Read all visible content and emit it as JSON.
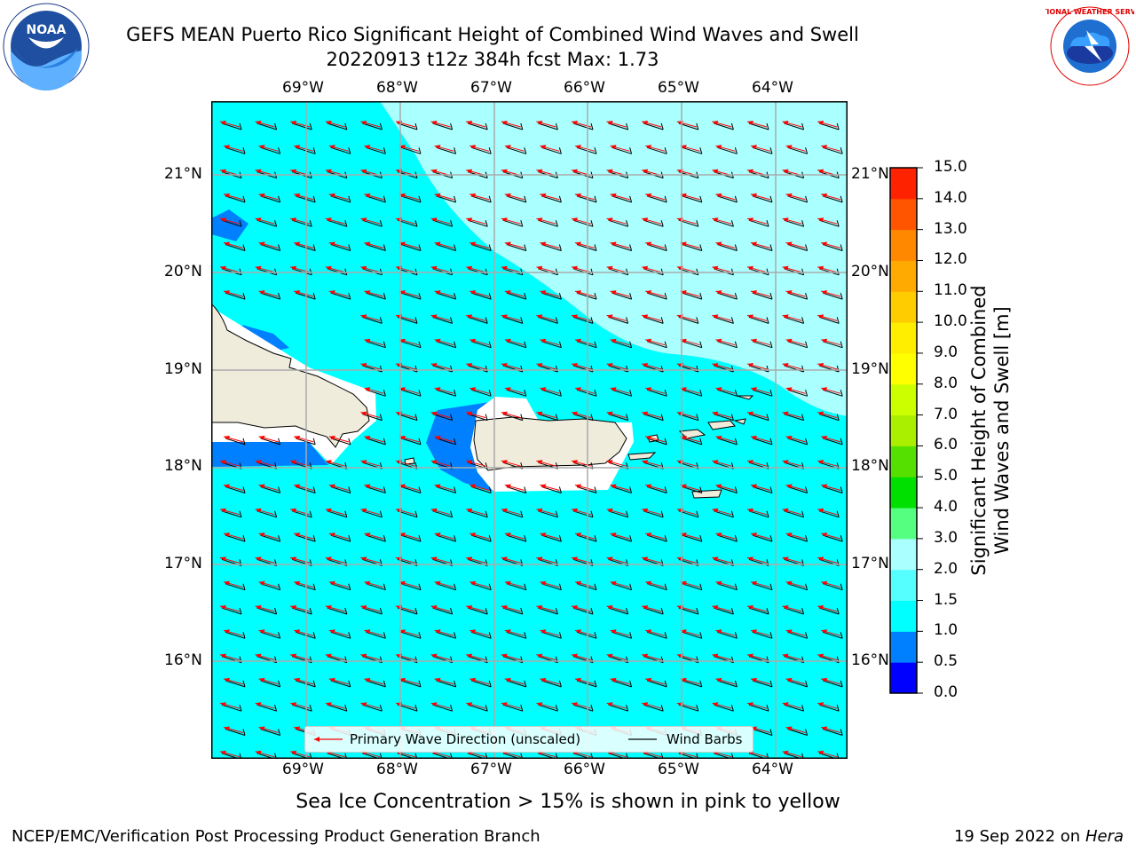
{
  "title_line1": "GEFS MEAN Puerto Rico Significant Height of Combined Wind Waves and Swell",
  "title_line2": "20220913 t12z 384h fcst   Max: 1.73",
  "lon_ticks": [
    "69°W",
    "68°W",
    "67°W",
    "66°W",
    "65°W",
    "64°W"
  ],
  "lat_ticks": [
    "21°N",
    "20°N",
    "19°N",
    "18°N",
    "17°N",
    "16°N"
  ],
  "colorbar": {
    "label_line1": "Significant Height of Combined",
    "label_line2": "Wind Waves and Swell [m]",
    "ticks": [
      "0.0",
      "0.5",
      "1.0",
      "1.5",
      "2.0",
      "3.0",
      "4.0",
      "5.0",
      "6.0",
      "7.0",
      "8.0",
      "9.0",
      "10.0",
      "11.0",
      "12.0",
      "13.0",
      "14.0",
      "15.0"
    ],
    "colors": [
      "#0000ff",
      "#0080ff",
      "#00ffff",
      "#55ffff",
      "#aaffff",
      "#55ff80",
      "#00e000",
      "#55e000",
      "#aaee00",
      "#ccff00",
      "#ffff00",
      "#ffee00",
      "#ffcc00",
      "#ffaa00",
      "#ff8800",
      "#ff5500",
      "#ff2200"
    ]
  },
  "legend": {
    "wave_dir": "Primary Wave Direction (unscaled)",
    "wind_barbs": "Wind Barbs"
  },
  "subcaption": "Sea Ice Concentration > 15% is shown in pink to yellow",
  "footer_left": "NCEP/EMC/Verification Post Processing Product Generation Branch",
  "footer_date": "19 Sep 2022 on",
  "footer_host": "Hera",
  "logos": {
    "noaa_text": "NOAA",
    "nws_text": "NATIONAL WEATHER SERVICE"
  },
  "colors": {
    "ocean": "#00ffff",
    "light_band": "#aaffff",
    "low_wave": "#0080ff",
    "land": "#efecdc",
    "arrow": "#ff0000",
    "barb": "#000000"
  }
}
